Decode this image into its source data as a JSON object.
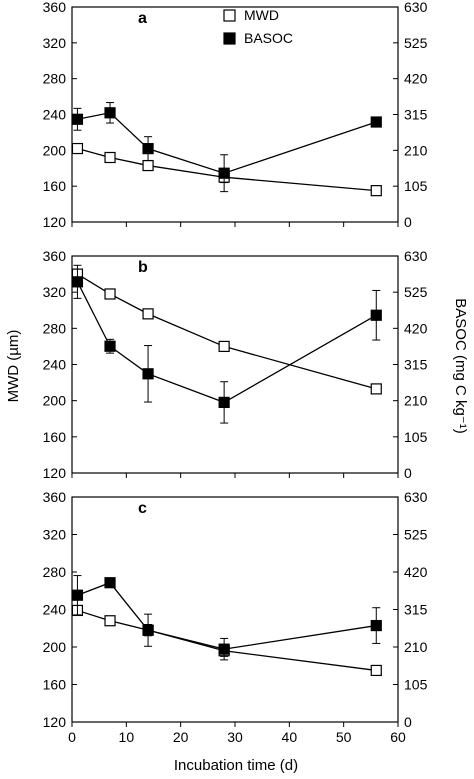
{
  "figure": {
    "ylabel_left": "MWD (µm)",
    "ylabel_right": "BASOC (mg C kg⁻¹)",
    "xlabel": "Incubation time (d)",
    "legend": {
      "placement": "top-center",
      "mwd": "MWD",
      "basoc": "BASOC"
    }
  },
  "chart_data": [
    {
      "type": "line",
      "panel_label": "a",
      "x": [
        1,
        7,
        14,
        28,
        56
      ],
      "xlim": [
        0,
        60
      ],
      "x_ticks": [
        0,
        10,
        20,
        30,
        40,
        50,
        60
      ],
      "ylim_left": [
        120,
        360
      ],
      "y_ticks_left": [
        120,
        160,
        200,
        240,
        280,
        320,
        360
      ],
      "ylim_right": [
        0,
        630
      ],
      "y_ticks_right": [
        0,
        105,
        210,
        315,
        420,
        525,
        630
      ],
      "series": [
        {
          "name": "MWD",
          "axis": "left",
          "marker": "open-square",
          "values": [
            202,
            192,
            183,
            170,
            155
          ],
          "errors": [
            4,
            3,
            3,
            6,
            2
          ]
        },
        {
          "name": "BASOC",
          "axis": "right",
          "marker": "filled-square",
          "values": [
            301,
            320,
            215,
            143,
            293
          ],
          "errors": [
            32,
            30,
            35,
            54,
            10
          ]
        }
      ]
    },
    {
      "type": "line",
      "panel_label": "b",
      "x": [
        1,
        7,
        14,
        28,
        56
      ],
      "xlim": [
        0,
        60
      ],
      "x_ticks": [
        0,
        10,
        20,
        30,
        40,
        50,
        60
      ],
      "ylim_left": [
        120,
        360
      ],
      "y_ticks_left": [
        120,
        160,
        200,
        240,
        280,
        320,
        360
      ],
      "ylim_right": [
        0,
        630
      ],
      "y_ticks_right": [
        0,
        105,
        210,
        315,
        420,
        525,
        630
      ],
      "series": [
        {
          "name": "MWD",
          "axis": "left",
          "marker": "open-square",
          "values": [
            340,
            318,
            296,
            260,
            213
          ],
          "errors": [
            4,
            3,
            4,
            3,
            2
          ]
        },
        {
          "name": "BASOC",
          "axis": "right",
          "marker": "filled-square",
          "values": [
            555,
            368,
            288,
            205,
            458
          ],
          "errors": [
            48,
            20,
            82,
            60,
            72
          ]
        }
      ]
    },
    {
      "type": "line",
      "panel_label": "c",
      "x": [
        1,
        7,
        14,
        28,
        56
      ],
      "xlim": [
        0,
        60
      ],
      "x_ticks": [
        0,
        10,
        20,
        30,
        40,
        50,
        60
      ],
      "ylim_left": [
        120,
        360
      ],
      "y_ticks_left": [
        120,
        160,
        200,
        240,
        280,
        320,
        360
      ],
      "ylim_right": [
        0,
        630
      ],
      "y_ticks_right": [
        0,
        105,
        210,
        315,
        420,
        525,
        630
      ],
      "series": [
        {
          "name": "MWD",
          "axis": "left",
          "marker": "open-square",
          "values": [
            239,
            228,
            218,
            196,
            175
          ],
          "errors": [
            5,
            3,
            6,
            6,
            2
          ]
        },
        {
          "name": "BASOC",
          "axis": "right",
          "marker": "filled-square",
          "values": [
            355,
            390,
            257,
            204,
            270
          ],
          "errors": [
            55,
            12,
            45,
            30,
            50
          ]
        }
      ]
    }
  ]
}
